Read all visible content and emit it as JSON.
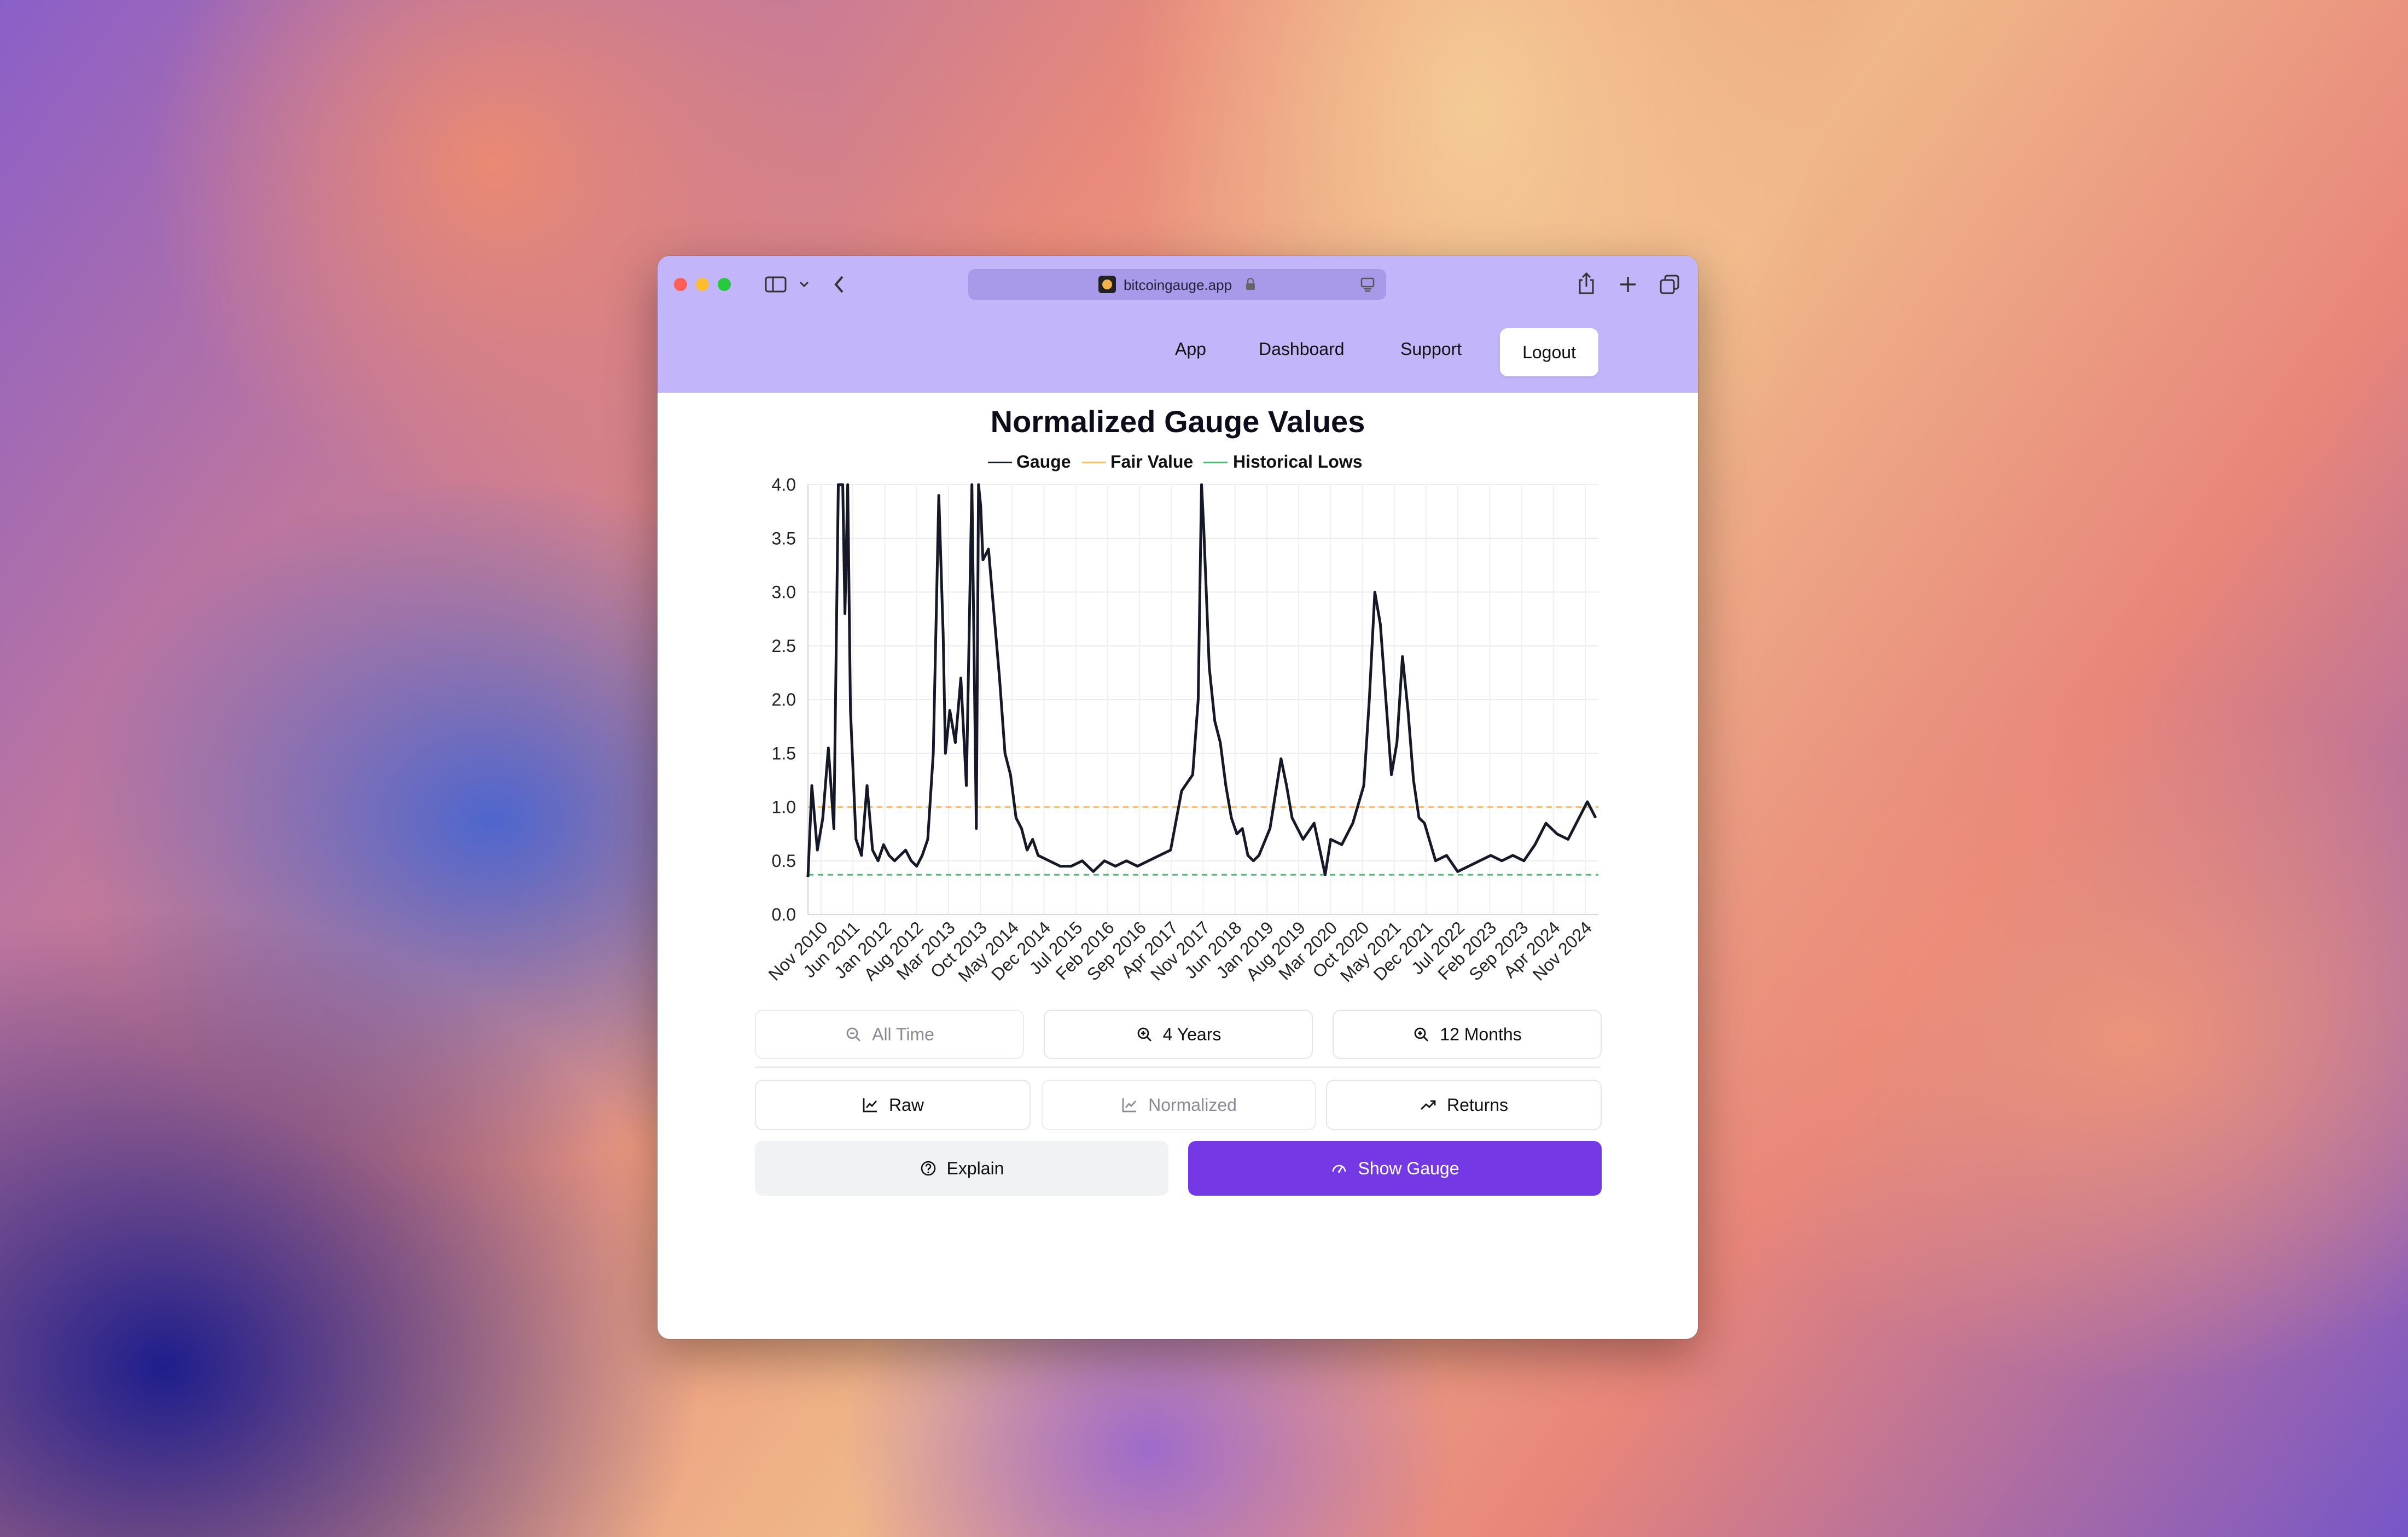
{
  "browser": {
    "url": "bitcoingauge.app",
    "traffic_lights": [
      "#ff5f57",
      "#febc2e",
      "#28c840"
    ],
    "icons": [
      "sidebar-icon",
      "chevron-down-icon",
      "back-icon",
      "lock-icon",
      "reader-icon",
      "share-icon",
      "new-tab-icon",
      "tabs-icon"
    ]
  },
  "nav": {
    "links": [
      "App",
      "Dashboard",
      "Support"
    ],
    "logout": "Logout",
    "bar_color": "#c3b5f9"
  },
  "chart_data": {
    "type": "line",
    "title": "Normalized Gauge Values",
    "legend": [
      "Gauge",
      "Fair Value",
      "Historical Lows"
    ],
    "legend_placement": "top-center",
    "colors": {
      "gauge": "#141827",
      "fair_value": "#f2c27c",
      "historical_lows": "#5db27a"
    },
    "ylim": [
      0,
      4
    ],
    "yticks": [
      "0.0",
      "0.5",
      "1.0",
      "1.5",
      "2.0",
      "2.5",
      "3.0",
      "3.5",
      "4.0"
    ],
    "xticks": [
      "Nov 2010",
      "Jun 2011",
      "Jan 2012",
      "Aug 2012",
      "Mar 2013",
      "Oct 2013",
      "May 2014",
      "Dec 2014",
      "Jul 2015",
      "Feb 2016",
      "Sep 2016",
      "Apr 2017",
      "Nov 2017",
      "Jun 2018",
      "Jan 2019",
      "Aug 2019",
      "Mar 2020",
      "Oct 2020",
      "May 2021",
      "Dec 2021",
      "Jul 2022",
      "Feb 2023",
      "Sep 2023",
      "Apr 2024",
      "Nov 2024"
    ],
    "grid": true,
    "series": [
      {
        "name": "Gauge",
        "x": [
          2010.83,
          2010.9,
          2011.0,
          2011.1,
          2011.2,
          2011.3,
          2011.38,
          2011.42,
          2011.46,
          2011.5,
          2011.55,
          2011.6,
          2011.7,
          2011.8,
          2011.9,
          2012.0,
          2012.1,
          2012.2,
          2012.3,
          2012.4,
          2012.5,
          2012.6,
          2012.7,
          2012.8,
          2012.9,
          2013.0,
          2013.1,
          2013.2,
          2013.28,
          2013.32,
          2013.4,
          2013.5,
          2013.6,
          2013.7,
          2013.8,
          2013.88,
          2013.92,
          2013.96,
          2014.0,
          2014.1,
          2014.2,
          2014.3,
          2014.4,
          2014.5,
          2014.6,
          2014.7,
          2014.8,
          2014.9,
          2015.0,
          2015.2,
          2015.4,
          2015.6,
          2015.8,
          2016.0,
          2016.2,
          2016.4,
          2016.6,
          2016.8,
          2017.0,
          2017.2,
          2017.4,
          2017.6,
          2017.8,
          2017.9,
          2017.96,
          2018.0,
          2018.1,
          2018.2,
          2018.3,
          2018.4,
          2018.5,
          2018.6,
          2018.7,
          2018.8,
          2018.9,
          2019.0,
          2019.2,
          2019.4,
          2019.5,
          2019.6,
          2019.8,
          2020.0,
          2020.2,
          2020.3,
          2020.5,
          2020.7,
          2020.9,
          2021.0,
          2021.1,
          2021.2,
          2021.3,
          2021.4,
          2021.5,
          2021.6,
          2021.7,
          2021.8,
          2021.9,
          2022.0,
          2022.2,
          2022.4,
          2022.6,
          2022.8,
          2023.0,
          2023.2,
          2023.4,
          2023.6,
          2023.8,
          2024.0,
          2024.2,
          2024.4,
          2024.6,
          2024.8,
          2024.95,
          2025.1
        ],
        "values": [
          0.35,
          1.2,
          0.6,
          0.9,
          1.55,
          0.8,
          4.0,
          4.0,
          4.0,
          2.8,
          4.0,
          1.9,
          0.7,
          0.55,
          1.2,
          0.6,
          0.5,
          0.65,
          0.55,
          0.5,
          0.55,
          0.6,
          0.5,
          0.45,
          0.55,
          0.7,
          1.5,
          3.9,
          2.6,
          1.5,
          1.9,
          1.6,
          2.2,
          1.2,
          4.0,
          0.8,
          4.0,
          3.8,
          3.3,
          3.4,
          2.8,
          2.2,
          1.5,
          1.3,
          0.9,
          0.8,
          0.6,
          0.7,
          0.55,
          0.5,
          0.45,
          0.45,
          0.5,
          0.4,
          0.5,
          0.45,
          0.5,
          0.45,
          0.5,
          0.55,
          0.6,
          1.15,
          1.3,
          2.0,
          4.0,
          3.6,
          2.3,
          1.8,
          1.6,
          1.2,
          0.9,
          0.75,
          0.8,
          0.55,
          0.5,
          0.55,
          0.8,
          1.45,
          1.2,
          0.9,
          0.7,
          0.85,
          0.37,
          0.7,
          0.65,
          0.85,
          1.2,
          2.0,
          3.0,
          2.7,
          2.0,
          1.3,
          1.6,
          2.4,
          1.9,
          1.25,
          0.9,
          0.85,
          0.5,
          0.55,
          0.4,
          0.45,
          0.5,
          0.55,
          0.5,
          0.55,
          0.5,
          0.65,
          0.85,
          0.75,
          0.7,
          0.9,
          1.05,
          0.9
        ]
      },
      {
        "name": "Fair Value",
        "constant": 1.0
      },
      {
        "name": "Historical Lows",
        "constant": 0.37
      }
    ]
  },
  "controls": {
    "range_buttons": [
      {
        "label": "All Time",
        "icon": "zoom-out-icon",
        "active": false
      },
      {
        "label": "4 Years",
        "icon": "zoom-in-icon",
        "active": true
      },
      {
        "label": "12 Months",
        "icon": "zoom-in-icon",
        "active": true
      }
    ],
    "view_buttons": [
      {
        "label": "Raw",
        "icon": "line-chart-icon",
        "active": true
      },
      {
        "label": "Normalized",
        "icon": "line-chart-icon",
        "active": false
      },
      {
        "label": "Returns",
        "icon": "trending-up-icon",
        "active": true
      }
    ],
    "explain": "Explain",
    "show_gauge": "Show Gauge",
    "accent": "#7439e4"
  }
}
